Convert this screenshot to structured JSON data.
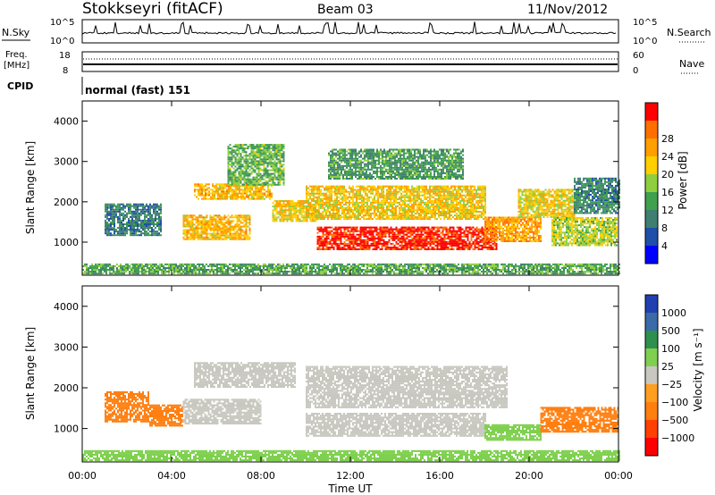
{
  "header": {
    "title": "Stokkseyri (fitACF)",
    "beam": "Beam 03",
    "date": "11/Nov/2012"
  },
  "status_panels": {
    "nsky_label": "N.Sky",
    "nsky_ticks": [
      "10^5",
      "10^0"
    ],
    "nsearch_label": "N.Search",
    "freq_label_line1": "Freq.",
    "freq_label_line2": "[MHz]",
    "freq_ticks": [
      "18",
      "8"
    ],
    "nave_label": "Nave",
    "nave_ticks": [
      "60",
      "0"
    ],
    "cpid_label": "CPID",
    "cpid_value": "normal (fast) 151"
  },
  "colors": {
    "power_scale": [
      "#0000ff",
      "#1f4fa8",
      "#3f7f6f",
      "#3fa04f",
      "#8fcf3f",
      "#ffcf00",
      "#ff9f00",
      "#ff6f00",
      "#ff0000"
    ],
    "velocity_scale": [
      "#2040b0",
      "#3a6aa8",
      "#2f8f4f",
      "#7fd04f",
      "#c8c8c0",
      "#ff9f20",
      "#ff7f10",
      "#ff4000",
      "#ff0000"
    ],
    "ground_scatter_grey": "#c8c8c0"
  },
  "chart_data": [
    {
      "type": "heatmap",
      "panel": "power",
      "ylabel": "Slant Range [km]",
      "yticks": [
        "1000",
        "2000",
        "3000",
        "4000"
      ],
      "ylim": [
        180,
        4500
      ],
      "xlim": [
        "00:00",
        "24:00"
      ],
      "colorbar_label": "Power [dB]",
      "colorbar_ticks": [
        "4",
        "8",
        "12",
        "16",
        "20",
        "24",
        "28"
      ],
      "colorbar_range": [
        0,
        30
      ],
      "bands": [
        {
          "t0": 1.0,
          "t1": 3.5,
          "r0": 1150,
          "r1": 1950,
          "value": 8
        },
        {
          "t0": 4.5,
          "t1": 7.5,
          "r0": 1050,
          "r1": 1650,
          "value": 20
        },
        {
          "t0": 5.0,
          "t1": 8.5,
          "r0": 2050,
          "r1": 2450,
          "value": 20
        },
        {
          "t0": 6.5,
          "t1": 9.0,
          "r0": 2400,
          "r1": 3400,
          "value": 13
        },
        {
          "t0": 8.5,
          "t1": 10.5,
          "r0": 1500,
          "r1": 2000,
          "value": 19
        },
        {
          "t0": 10.5,
          "t1": 18.5,
          "r0": 800,
          "r1": 1350,
          "value": 28
        },
        {
          "t0": 10.0,
          "t1": 18.0,
          "r0": 1550,
          "r1": 2400,
          "value": 19
        },
        {
          "t0": 11.0,
          "t1": 17.0,
          "r0": 2550,
          "r1": 3300,
          "value": 11
        },
        {
          "t0": 18.0,
          "t1": 20.5,
          "r0": 1000,
          "r1": 1600,
          "value": 22
        },
        {
          "t0": 19.5,
          "t1": 22.0,
          "r0": 1600,
          "r1": 2300,
          "value": 18
        },
        {
          "t0": 21.0,
          "t1": 23.9,
          "r0": 900,
          "r1": 1600,
          "value": 16
        },
        {
          "t0": 22.0,
          "t1": 24.0,
          "r0": 1700,
          "r1": 2600,
          "value": 9
        },
        {
          "t0": 0.0,
          "t1": 24.0,
          "r0": 200,
          "r1": 450,
          "value": 12
        }
      ]
    },
    {
      "type": "heatmap",
      "panel": "velocity",
      "ylabel": "Slant Range [km]",
      "yticks": [
        "1000",
        "2000",
        "3000",
        "4000"
      ],
      "ylim": [
        180,
        4500
      ],
      "xlabel": "Time UT",
      "xticks": [
        "00:00",
        "04:00",
        "08:00",
        "12:00",
        "16:00",
        "20:00",
        "00:00"
      ],
      "xlim": [
        "00:00",
        "24:00"
      ],
      "colorbar_label": "Velocity [m s⁻¹]",
      "colorbar_ticks": [
        "1000",
        "500",
        "100",
        "25",
        "−25",
        "−100",
        "−500",
        "−1000"
      ],
      "bands": [
        {
          "t0": 1.0,
          "t1": 3.0,
          "r0": 1150,
          "r1": 1900,
          "value": -200
        },
        {
          "t0": 3.0,
          "t1": 4.5,
          "r0": 1050,
          "r1": 1550,
          "value": -300
        },
        {
          "t0": 4.5,
          "t1": 8.0,
          "r0": 1100,
          "r1": 1700,
          "value": "ground"
        },
        {
          "t0": 5.0,
          "t1": 9.5,
          "r0": 2000,
          "r1": 2600,
          "value": "ground"
        },
        {
          "t0": 10.0,
          "t1": 18.0,
          "r0": 800,
          "r1": 1350,
          "value": "ground"
        },
        {
          "t0": 10.0,
          "t1": 19.0,
          "r0": 1500,
          "r1": 2500,
          "value": "ground"
        },
        {
          "t0": 18.0,
          "t1": 20.5,
          "r0": 700,
          "r1": 1100,
          "value": 60
        },
        {
          "t0": 20.5,
          "t1": 24.0,
          "r0": 900,
          "r1": 1500,
          "value": -200
        },
        {
          "t0": 0.0,
          "t1": 24.0,
          "r0": 200,
          "r1": 450,
          "value": 60
        }
      ]
    }
  ]
}
